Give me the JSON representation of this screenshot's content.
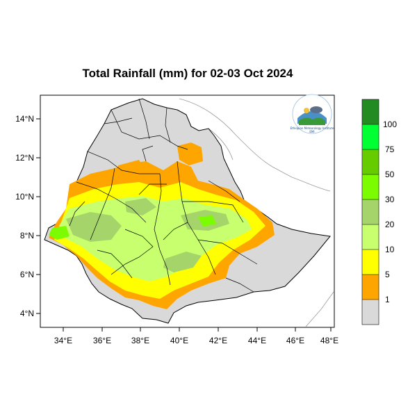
{
  "title": "Total Rainfall (mm) for 02-03 Oct 2024",
  "map": {
    "lon_range": [
      33,
      48.2
    ],
    "lat_range": [
      3.2,
      15
    ],
    "x_ticks": [
      "34°E",
      "36°E",
      "38°E",
      "40°E",
      "42°E",
      "44°E",
      "46°E",
      "48°E"
    ],
    "y_ticks": [
      "14°N",
      "12°N",
      "10°N",
      "8°N",
      "6°N",
      "4°N"
    ]
  },
  "colorbar": {
    "labels": [
      "1",
      "5",
      "10",
      "20",
      "30",
      "50",
      "75",
      "100"
    ],
    "colors": [
      "#d9d9d9",
      "#ffa500",
      "#ffff00",
      "#c8ff6e",
      "#a5d46a",
      "#7cfc00",
      "#66cc00",
      "#00ff33",
      "#228b22"
    ]
  },
  "logo": {
    "caption": "Ethiopian Meteorology Institute",
    "label": "EMI"
  }
}
